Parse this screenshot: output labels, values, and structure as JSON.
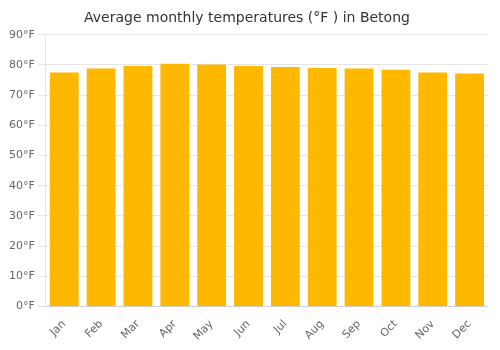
{
  "chart_data": {
    "type": "bar",
    "title": "Average monthly temperatures (°F ) in Betong",
    "categories": [
      "Jan",
      "Feb",
      "Mar",
      "Apr",
      "May",
      "Jun",
      "Jul",
      "Aug",
      "Sep",
      "Oct",
      "Nov",
      "Dec"
    ],
    "values": [
      77.5,
      78.8,
      79.7,
      80.4,
      80.2,
      79.7,
      79.3,
      79.0,
      78.8,
      78.4,
      77.5,
      77.2
    ],
    "color": "#FFB800",
    "ylim": [
      0,
      90
    ],
    "yticks": [
      {
        "value": 0,
        "label": "0°F"
      },
      {
        "value": 10,
        "label": "10°F"
      },
      {
        "value": 20,
        "label": "20°F"
      },
      {
        "value": 30,
        "label": "30°F"
      },
      {
        "value": 40,
        "label": "40°F"
      },
      {
        "value": 50,
        "label": "50°F"
      },
      {
        "value": 60,
        "label": "60°F"
      },
      {
        "value": 70,
        "label": "70°F"
      },
      {
        "value": 80,
        "label": "80°F"
      },
      {
        "value": 90,
        "label": "90°F"
      }
    ],
    "grid": true
  }
}
